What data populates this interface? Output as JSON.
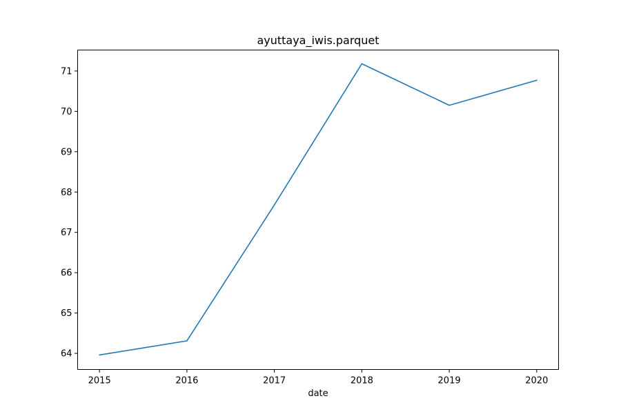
{
  "chart_data": {
    "type": "line",
    "title": "ayuttaya_iwis.parquet",
    "xlabel": "date",
    "ylabel": "",
    "x": [
      "2015",
      "2016",
      "2017",
      "2018",
      "2019",
      "2020"
    ],
    "series": [
      {
        "values": [
          63.96,
          64.31,
          67.68,
          71.18,
          70.15,
          70.77
        ],
        "color": "#1f77b4"
      }
    ],
    "xlim": [
      2014.75,
      2020.25
    ],
    "ylim": [
      63.6,
      71.52
    ],
    "yticks": [
      "64",
      "65",
      "66",
      "67",
      "68",
      "69",
      "70",
      "71"
    ],
    "grid": false,
    "legend": "none"
  }
}
